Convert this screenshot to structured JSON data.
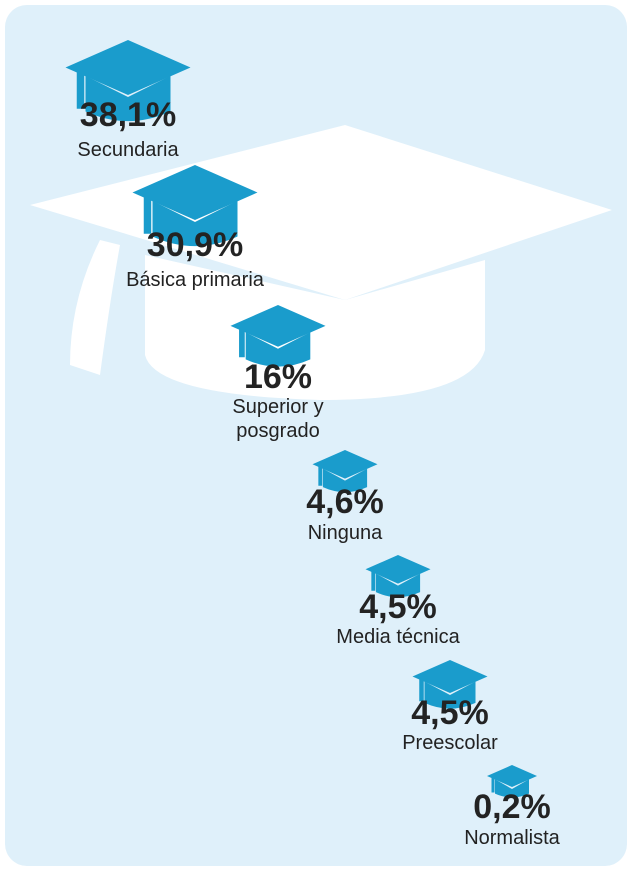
{
  "items": [
    {
      "percent": "38,1%",
      "label": "Secundaria"
    },
    {
      "percent": "30,9%",
      "label": "Básica primaria"
    },
    {
      "percent": "16%",
      "label": "Superior y posgrado"
    },
    {
      "percent": "4,6%",
      "label": "Ninguna"
    },
    {
      "percent": "4,5%",
      "label": "Media técnica"
    },
    {
      "percent": "4,5%",
      "label": "Preescolar"
    },
    {
      "percent": "0,2%",
      "label": "Normalista"
    }
  ]
}
